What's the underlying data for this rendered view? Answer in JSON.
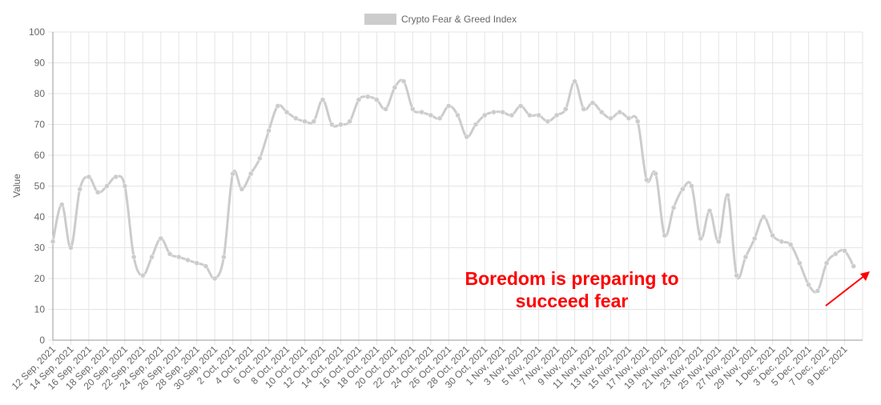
{
  "chart_data": {
    "type": "line",
    "title": "",
    "xlabel": "",
    "ylabel": "Value",
    "ylim": [
      0,
      100
    ],
    "yticks": [
      0,
      10,
      20,
      30,
      40,
      50,
      60,
      70,
      80,
      90,
      100
    ],
    "grid": true,
    "legend": "top-center",
    "series": [
      {
        "name": "Crypto Fear & Greed Index",
        "color": "#cccccc",
        "x": [
          "12 Sep, 2021",
          "13 Sep, 2021",
          "14 Sep, 2021",
          "15 Sep, 2021",
          "16 Sep, 2021",
          "17 Sep, 2021",
          "18 Sep, 2021",
          "19 Sep, 2021",
          "20 Sep, 2021",
          "21 Sep, 2021",
          "22 Sep, 2021",
          "23 Sep, 2021",
          "24 Sep, 2021",
          "25 Sep, 2021",
          "26 Sep, 2021",
          "27 Sep, 2021",
          "28 Sep, 2021",
          "29 Sep, 2021",
          "30 Sep, 2021",
          "1 Oct, 2021",
          "2 Oct, 2021",
          "3 Oct, 2021",
          "4 Oct, 2021",
          "5 Oct, 2021",
          "6 Oct, 2021",
          "7 Oct, 2021",
          "8 Oct, 2021",
          "9 Oct, 2021",
          "10 Oct, 2021",
          "11 Oct, 2021",
          "12 Oct, 2021",
          "13 Oct, 2021",
          "14 Oct, 2021",
          "15 Oct, 2021",
          "16 Oct, 2021",
          "17 Oct, 2021",
          "18 Oct, 2021",
          "19 Oct, 2021",
          "20 Oct, 2021",
          "21 Oct, 2021",
          "22 Oct, 2021",
          "23 Oct, 2021",
          "24 Oct, 2021",
          "25 Oct, 2021",
          "26 Oct, 2021",
          "27 Oct, 2021",
          "28 Oct, 2021",
          "29 Oct, 2021",
          "30 Oct, 2021",
          "31 Oct, 2021",
          "1 Nov, 2021",
          "2 Nov, 2021",
          "3 Nov, 2021",
          "4 Nov, 2021",
          "5 Nov, 2021",
          "6 Nov, 2021",
          "7 Nov, 2021",
          "8 Nov, 2021",
          "9 Nov, 2021",
          "10 Nov, 2021",
          "11 Nov, 2021",
          "12 Nov, 2021",
          "13 Nov, 2021",
          "14 Nov, 2021",
          "15 Nov, 2021",
          "16 Nov, 2021",
          "17 Nov, 2021",
          "18 Nov, 2021",
          "19 Nov, 2021",
          "20 Nov, 2021",
          "21 Nov, 2021",
          "22 Nov, 2021",
          "23 Nov, 2021",
          "24 Nov, 2021",
          "25 Nov, 2021",
          "26 Nov, 2021",
          "27 Nov, 2021",
          "28 Nov, 2021",
          "29 Nov, 2021",
          "30 Nov, 2021",
          "1 Dec, 2021",
          "2 Dec, 2021",
          "3 Dec, 2021",
          "4 Dec, 2021",
          "5 Dec, 2021",
          "6 Dec, 2021",
          "7 Dec, 2021",
          "8 Dec, 2021",
          "9 Dec, 2021",
          "10 Dec, 2021"
        ],
        "values": [
          32,
          44,
          30,
          49,
          53,
          48,
          50,
          53,
          50,
          27,
          21,
          27,
          33,
          28,
          27,
          26,
          25,
          24,
          20,
          27,
          54,
          49,
          54,
          59,
          68,
          76,
          74,
          72,
          71,
          71,
          78,
          70,
          70,
          71,
          78,
          79,
          78,
          75,
          82,
          84,
          75,
          74,
          73,
          72,
          76,
          73,
          66,
          70,
          73,
          74,
          74,
          73,
          76,
          73,
          73,
          71,
          73,
          75,
          84,
          75,
          77,
          74,
          72,
          74,
          72,
          71,
          52,
          54,
          34,
          43,
          49,
          50,
          33,
          42,
          32,
          47,
          21,
          27,
          33,
          40,
          34,
          32,
          31,
          25,
          18,
          16,
          25,
          28,
          29,
          24
        ]
      }
    ],
    "xtick_labels": [
      "12 Sep, 2021",
      "14 Sep, 2021",
      "16 Sep, 2021",
      "18 Sep, 2021",
      "20 Sep, 2021",
      "22 Sep, 2021",
      "24 Sep, 2021",
      "26 Sep, 2021",
      "28 Sep, 2021",
      "30 Sep, 2021",
      "2 Oct, 2021",
      "4 Oct, 2021",
      "6 Oct, 2021",
      "8 Oct, 2021",
      "10 Oct, 2021",
      "12 Oct, 2021",
      "14 Oct, 2021",
      "16 Oct, 2021",
      "18 Oct, 2021",
      "20 Oct, 2021",
      "22 Oct, 2021",
      "24 Oct, 2021",
      "26 Oct, 2021",
      "28 Oct, 2021",
      "30 Oct, 2021",
      "1 Nov, 2021",
      "3 Nov, 2021",
      "5 Nov, 2021",
      "7 Nov, 2021",
      "9 Nov, 2021",
      "11 Nov, 2021",
      "13 Nov, 2021",
      "15 Nov, 2021",
      "17 Nov, 2021",
      "19 Nov, 2021",
      "21 Nov, 2021",
      "23 Nov, 2021",
      "25 Nov, 2021",
      "27 Nov, 2021",
      "29 Nov, 2021",
      "1 Dec, 2021",
      "3 Dec, 2021",
      "5 Dec, 2021",
      "7 Dec, 2021",
      "9 Dec, 2021"
    ],
    "annotation": {
      "lines": [
        "Boredom is preparing to",
        "succeed fear"
      ],
      "color": "#ff0000",
      "arrow_color": "#ff0000"
    },
    "grid_color": "#e5e5e5",
    "axis_color": "#999999"
  }
}
